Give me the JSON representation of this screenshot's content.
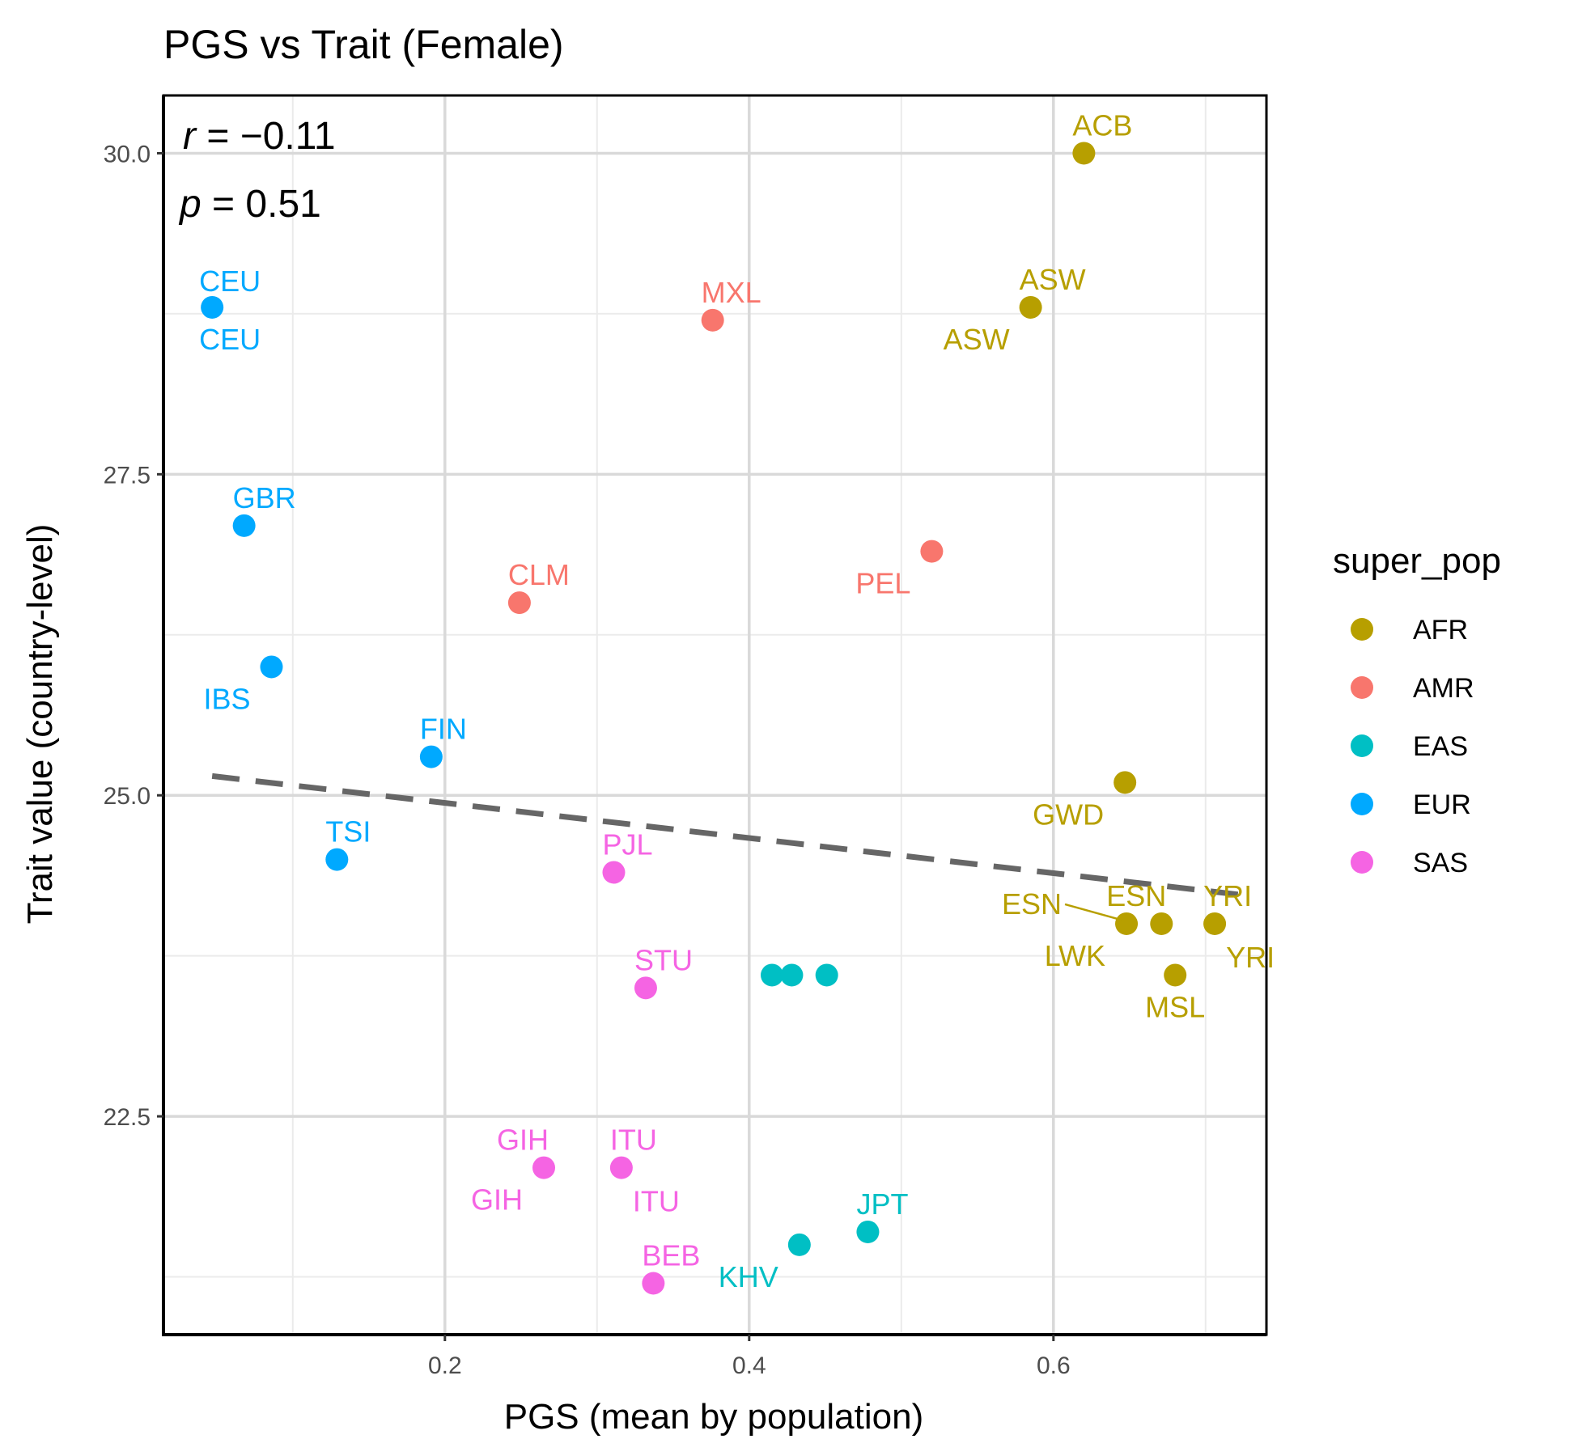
{
  "chart_data": {
    "type": "scatter",
    "title": "PGS vs Trait (Female)",
    "xlabel": "PGS (mean by population)",
    "ylabel": "Trait value (country-level)",
    "xlim": [
      0.015,
      0.74
    ],
    "ylim": [
      20.8,
      30.45
    ],
    "x_ticks": [
      0.2,
      0.4,
      0.6
    ],
    "x_tick_labels": [
      "0.2",
      "0.4",
      "0.6"
    ],
    "x_minor_ticks": [
      0.1,
      0.3,
      0.5,
      0.7
    ],
    "y_ticks": [
      22.5,
      25.0,
      27.5,
      30.0
    ],
    "y_tick_labels": [
      "22.5",
      "25.0",
      "27.5",
      "30.0"
    ],
    "y_minor_ticks": [
      21.25,
      23.75,
      26.25,
      28.75
    ],
    "grid": true,
    "annotations": {
      "r_symbol": "r",
      "r_value": " = −0.11",
      "p_symbol": "p",
      "p_value": " = 0.51"
    },
    "trend_line": {
      "style": "dashed",
      "x": [
        0.047,
        0.727
      ],
      "y": [
        25.15,
        24.22
      ],
      "color": "#666666"
    },
    "legend": {
      "title": "super_pop",
      "position": "right",
      "entries": [
        {
          "name": "AFR",
          "color": "#B79F00"
        },
        {
          "name": "AMR",
          "color": "#F8766D"
        },
        {
          "name": "EAS",
          "color": "#00BFC4"
        },
        {
          "name": "EUR",
          "color": "#00A9FF"
        },
        {
          "name": "SAS",
          "color": "#F564E3"
        }
      ]
    },
    "points": [
      {
        "x": 0.047,
        "y": 28.8,
        "group": "EUR"
      },
      {
        "x": 0.068,
        "y": 27.1,
        "group": "EUR"
      },
      {
        "x": 0.086,
        "y": 26.0,
        "group": "EUR"
      },
      {
        "x": 0.129,
        "y": 24.5,
        "group": "EUR"
      },
      {
        "x": 0.191,
        "y": 25.3,
        "group": "EUR"
      },
      {
        "x": 0.249,
        "y": 26.5,
        "group": "AMR"
      },
      {
        "x": 0.376,
        "y": 28.7,
        "group": "AMR"
      },
      {
        "x": 0.52,
        "y": 26.9,
        "group": "AMR"
      },
      {
        "x": 0.265,
        "y": 22.1,
        "group": "SAS"
      },
      {
        "x": 0.316,
        "y": 22.1,
        "group": "SAS"
      },
      {
        "x": 0.337,
        "y": 21.2,
        "group": "SAS"
      },
      {
        "x": 0.311,
        "y": 24.4,
        "group": "SAS"
      },
      {
        "x": 0.332,
        "y": 23.5,
        "group": "SAS"
      },
      {
        "x": 0.415,
        "y": 23.6,
        "group": "EAS"
      },
      {
        "x": 0.428,
        "y": 23.6,
        "group": "EAS"
      },
      {
        "x": 0.451,
        "y": 23.6,
        "group": "EAS"
      },
      {
        "x": 0.433,
        "y": 21.5,
        "group": "EAS"
      },
      {
        "x": 0.478,
        "y": 21.6,
        "group": "EAS"
      },
      {
        "x": 0.585,
        "y": 28.8,
        "group": "AFR"
      },
      {
        "x": 0.62,
        "y": 30.0,
        "group": "AFR"
      },
      {
        "x": 0.647,
        "y": 25.1,
        "group": "AFR"
      },
      {
        "x": 0.648,
        "y": 24.0,
        "group": "AFR"
      },
      {
        "x": 0.671,
        "y": 24.0,
        "group": "AFR"
      },
      {
        "x": 0.706,
        "y": 24.0,
        "group": "AFR"
      },
      {
        "x": 0.68,
        "y": 23.6,
        "group": "AFR"
      }
    ],
    "labels": [
      {
        "text": "CEU",
        "x": 0.047,
        "y": 28.8,
        "group": "EUR",
        "pos": "above"
      },
      {
        "text": "CEU",
        "x": 0.047,
        "y": 28.8,
        "group": "EUR",
        "pos": "below"
      },
      {
        "text": "GBR",
        "x": 0.068,
        "y": 27.1,
        "group": "EUR",
        "pos": "above-right"
      },
      {
        "text": "IBS",
        "x": 0.086,
        "y": 26.0,
        "group": "EUR",
        "pos": "below-left"
      },
      {
        "text": "TSI",
        "x": 0.129,
        "y": 24.5,
        "group": "EUR",
        "pos": "above-right"
      },
      {
        "text": "FIN",
        "x": 0.191,
        "y": 25.3,
        "group": "EUR",
        "pos": "above-right"
      },
      {
        "text": "CLM",
        "x": 0.249,
        "y": 26.5,
        "group": "AMR",
        "pos": "above-right"
      },
      {
        "text": "MXL",
        "x": 0.376,
        "y": 28.7,
        "group": "AMR",
        "pos": "above-right"
      },
      {
        "text": "PEL",
        "x": 0.52,
        "y": 26.9,
        "group": "AMR",
        "pos": "below-left"
      },
      {
        "text": "GIH",
        "x": 0.265,
        "y": 22.1,
        "group": "SAS",
        "pos": "above-left"
      },
      {
        "text": "GIH",
        "x": 0.265,
        "y": 22.1,
        "group": "SAS",
        "pos": "below-left"
      },
      {
        "text": "ITU",
        "x": 0.316,
        "y": 22.1,
        "group": "SAS",
        "pos": "above-right"
      },
      {
        "text": "ITU",
        "x": 0.316,
        "y": 22.1,
        "group": "SAS",
        "pos": "below-right"
      },
      {
        "text": "BEB",
        "x": 0.337,
        "y": 21.2,
        "group": "SAS",
        "pos": "above-right"
      },
      {
        "text": "PJL",
        "x": 0.311,
        "y": 24.4,
        "group": "SAS",
        "pos": "above-right"
      },
      {
        "text": "STU",
        "x": 0.332,
        "y": 23.5,
        "group": "SAS",
        "pos": "above-right"
      },
      {
        "text": "KHV",
        "x": 0.433,
        "y": 21.5,
        "group": "EAS",
        "pos": "below-left"
      },
      {
        "text": "JPT",
        "x": 0.478,
        "y": 21.6,
        "group": "EAS",
        "pos": "above-right"
      },
      {
        "text": "ACB",
        "x": 0.62,
        "y": 30.0,
        "group": "AFR",
        "pos": "above-right"
      },
      {
        "text": "ASW",
        "x": 0.585,
        "y": 28.8,
        "group": "AFR",
        "pos": "above-right"
      },
      {
        "text": "ASW",
        "x": 0.585,
        "y": 28.8,
        "group": "AFR",
        "pos": "below-left"
      },
      {
        "text": "GWD",
        "x": 0.647,
        "y": 25.1,
        "group": "AFR",
        "pos": "below-left"
      },
      {
        "text": "ESN",
        "x": 0.648,
        "y": 24.0,
        "group": "AFR",
        "pos": "far-left",
        "leader": true
      },
      {
        "text": "ESN",
        "x": 0.671,
        "y": 24.0,
        "group": "AFR",
        "pos": "above-left"
      },
      {
        "text": "LWK",
        "x": 0.648,
        "y": 24.0,
        "group": "AFR",
        "pos": "below-left"
      },
      {
        "text": "YRI",
        "x": 0.706,
        "y": 24.0,
        "group": "AFR",
        "pos": "above-right"
      },
      {
        "text": "YRI",
        "x": 0.706,
        "y": 24.0,
        "group": "AFR",
        "pos": "below-right"
      },
      {
        "text": "MSL",
        "x": 0.68,
        "y": 23.6,
        "group": "AFR",
        "pos": "below"
      }
    ]
  }
}
